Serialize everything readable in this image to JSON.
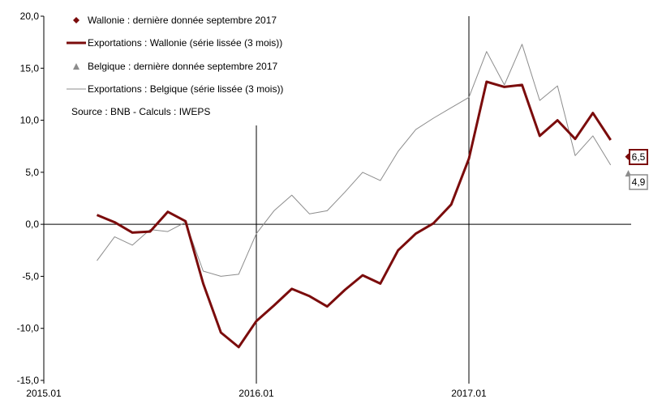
{
  "chart_data": {
    "type": "line",
    "title": "",
    "xlabel": "",
    "ylabel": "",
    "ylim": [
      -15,
      20
    ],
    "yticks": [
      -15,
      -10,
      -5,
      0,
      5,
      10,
      15,
      20
    ],
    "ytick_labels": [
      "-15,0",
      "-10,0",
      "-5,0",
      "0,0",
      "5,0",
      "10,0",
      "15,0",
      "20,0"
    ],
    "xticks": [
      "2015.01",
      "2016.01",
      "2017.01"
    ],
    "x": [
      "2015.04",
      "2015.05",
      "2015.06",
      "2015.07",
      "2015.08",
      "2015.09",
      "2015.10",
      "2015.11",
      "2015.12",
      "2016.01",
      "2016.02",
      "2016.03",
      "2016.04",
      "2016.05",
      "2016.06",
      "2016.07",
      "2016.08",
      "2016.09",
      "2016.10",
      "2016.11",
      "2016.12",
      "2017.01",
      "2017.02",
      "2017.03",
      "2017.04",
      "2017.05",
      "2017.06",
      "2017.07",
      "2017.08",
      "2017.09"
    ],
    "series": [
      {
        "name": "Exportations : Wallonie (série lissée (3 mois))",
        "color": "#7b0c0c",
        "values": [
          0.9,
          0.2,
          -0.8,
          -0.7,
          1.2,
          0.3,
          -5.7,
          -10.4,
          -11.8,
          -9.3,
          -7.8,
          -6.2,
          -6.9,
          -7.9,
          -6.3,
          -4.9,
          -5.7,
          -2.5,
          -0.9,
          0.1,
          1.9,
          6.3,
          13.7,
          13.2,
          13.4,
          8.5,
          10.0,
          8.2,
          10.7,
          8.1
        ]
      },
      {
        "name": "Exportations : Belgique (série lissée (3 mois))",
        "color": "#8c8c8c",
        "values": [
          -3.5,
          -1.2,
          -2.0,
          -0.5,
          -0.7,
          0.2,
          -4.5,
          -5.0,
          -4.8,
          -0.9,
          1.3,
          2.8,
          1.0,
          1.3,
          3.1,
          5.0,
          4.2,
          7.0,
          9.1,
          10.2,
          11.2,
          12.2,
          16.6,
          13.4,
          17.3,
          11.9,
          13.3,
          6.6,
          8.5,
          5.7
        ]
      }
    ],
    "markers": [
      {
        "name": "Wallonie : dernière donnée septembre 2017",
        "x": "2017.10",
        "y": 6.5,
        "label": "6,5",
        "shape": "diamond",
        "color": "#7b0c0c"
      },
      {
        "name": "Belgique : dernière donnée septembre 2017",
        "x": "2017.10",
        "y": 4.9,
        "label": "4,9",
        "shape": "triangle",
        "color": "#8c8c8c"
      }
    ],
    "source_note": "Source : BNB - Calculs : IWEPS",
    "legend_position": "top-left"
  }
}
